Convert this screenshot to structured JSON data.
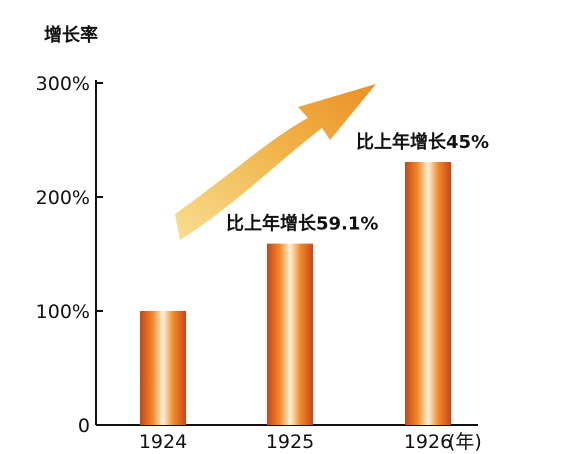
{
  "chart_data": {
    "type": "bar",
    "ylabel": "增长率",
    "categories": [
      "1924",
      "1925",
      "1926"
    ],
    "x_unit": "(年)",
    "values": [
      100,
      159.1,
      230.7
    ],
    "ylim": [
      0,
      300
    ],
    "yticks": [
      0,
      100,
      200,
      300
    ],
    "ytick_labels": [
      "0",
      "100%",
      "200%",
      "300%"
    ],
    "annotations": [
      "",
      "比上年增长59.1%",
      "比上年增长45%"
    ],
    "grid": false,
    "legend": "none",
    "trend_arrow": true
  },
  "colors": {
    "bar_edge": "#c8461a",
    "bar_mid": "#f08a2a",
    "bar_highlight": "#fff2dc",
    "arrow_start": "#f8dc8a",
    "arrow_end": "#e88a1a",
    "axis": "#111111"
  }
}
